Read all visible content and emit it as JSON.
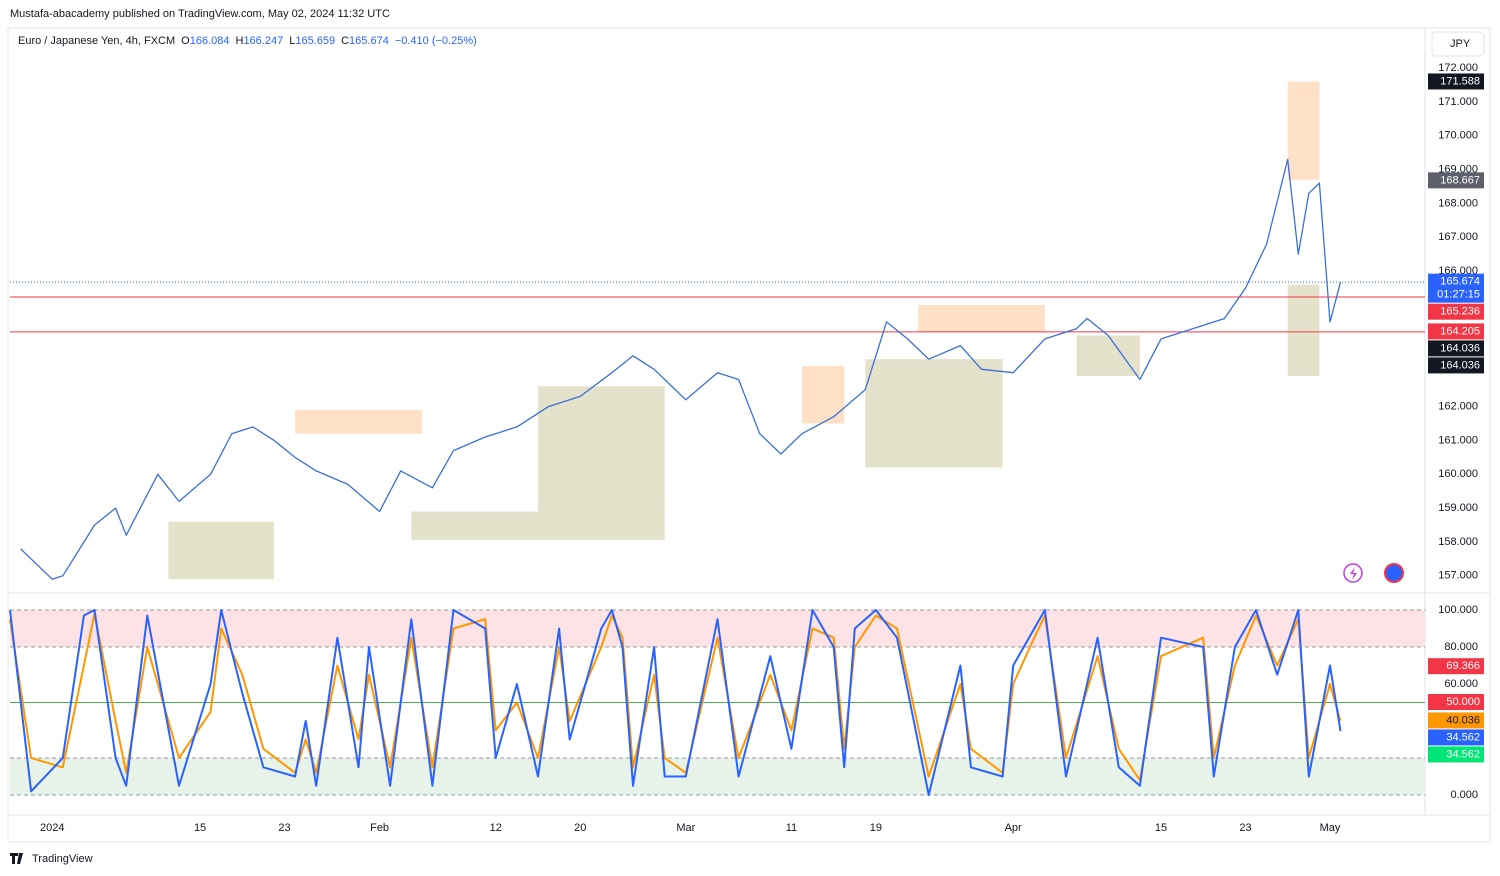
{
  "header": {
    "published": "Mustafa-abacademy published on TradingView.com, May 02, 2024 11:32 UTC",
    "currency": "JPY",
    "brand": "TradingView"
  },
  "chart_data": [
    {
      "type": "line",
      "symbol": "Euro / Japanese Yen, 4h, FXCM",
      "ohlc": [
        {
          "label": "O",
          "value": 166.084
        },
        {
          "label": "H",
          "value": 166.247
        },
        {
          "label": "L",
          "value": 165.659
        },
        {
          "label": "C",
          "value": 165.674
        }
      ],
      "change": "−0.410 (−0.25%)",
      "x": [
        "2023-12-29",
        "2024-01-01",
        "2024-01-02",
        "2024-01-05",
        "2024-01-07",
        "2024-01-08",
        "2024-01-11",
        "2024-01-13",
        "2024-01-16",
        "2024-01-18",
        "2024-01-20",
        "2024-01-22",
        "2024-01-24",
        "2024-01-26",
        "2024-01-29",
        "2024-02-01",
        "2024-02-03",
        "2024-02-06",
        "2024-02-08",
        "2024-02-11",
        "2024-02-14",
        "2024-02-17",
        "2024-02-20",
        "2024-02-23",
        "2024-02-25",
        "2024-02-27",
        "2024-03-01",
        "2024-03-04",
        "2024-03-06",
        "2024-03-08",
        "2024-03-10",
        "2024-03-12",
        "2024-03-15",
        "2024-03-18",
        "2024-03-20",
        "2024-03-22",
        "2024-03-24",
        "2024-03-27",
        "2024-03-29",
        "2024-04-01",
        "2024-04-04",
        "2024-04-07",
        "2024-04-08",
        "2024-04-10",
        "2024-04-13",
        "2024-04-15",
        "2024-04-18",
        "2024-04-21",
        "2024-04-23",
        "2024-04-25",
        "2024-04-27",
        "2024-04-28",
        "2024-04-29",
        "2024-04-30",
        "2024-05-01",
        "2024-05-02"
      ],
      "series": [
        {
          "color": "#3a6fd8",
          "values": [
            157.8,
            156.9,
            157.0,
            158.5,
            159.0,
            158.2,
            160.0,
            159.2,
            160.0,
            161.2,
            161.4,
            161.0,
            160.5,
            160.1,
            159.7,
            158.9,
            160.1,
            159.6,
            160.7,
            161.1,
            161.4,
            162.0,
            162.3,
            163.0,
            163.5,
            163.1,
            162.2,
            163.0,
            162.8,
            161.2,
            160.6,
            161.2,
            161.7,
            162.5,
            164.5,
            164.0,
            163.4,
            163.8,
            163.1,
            163.0,
            164.0,
            164.3,
            164.6,
            164.1,
            162.8,
            164.0,
            164.3,
            164.6,
            165.5,
            166.8,
            169.3,
            166.5,
            168.3,
            168.6,
            164.5,
            165.674
          ]
        }
      ],
      "zones": [
        {
          "start": "2024-01-12",
          "end": "2024-01-22",
          "low": 156.9,
          "high": 158.6,
          "color": "#e4e2cb"
        },
        {
          "start": "2024-02-04",
          "end": "2024-02-28",
          "low": 158.06,
          "high": 158.9,
          "color": "#e4e2cb"
        },
        {
          "start": "2024-02-16",
          "end": "2024-02-28",
          "low": 158.9,
          "high": 162.6,
          "color": "#e4e2cb"
        },
        {
          "start": "2024-03-18",
          "end": "2024-03-31",
          "low": 160.2,
          "high": 163.4,
          "color": "#e4e2cb"
        },
        {
          "start": "2024-04-07",
          "end": "2024-04-13",
          "low": 162.9,
          "high": 164.1,
          "color": "#e4e2cb"
        },
        {
          "start": "2024-04-27",
          "end": "2024-04-30",
          "low": 162.9,
          "high": 165.6,
          "color": "#e4e2cb"
        },
        {
          "start": "2024-01-24",
          "end": "2024-02-05",
          "low": 161.2,
          "high": 161.9,
          "color": "#fde0c6"
        },
        {
          "start": "2024-03-12",
          "end": "2024-03-16",
          "low": 161.5,
          "high": 163.2,
          "color": "#fde0c6"
        },
        {
          "start": "2024-03-23",
          "end": "2024-04-04",
          "low": 164.2,
          "high": 165.0,
          "color": "#fde0c6"
        },
        {
          "start": "2024-04-27",
          "end": "2024-04-30",
          "low": 168.7,
          "high": 171.6,
          "color": "#fde0c6"
        }
      ],
      "xlim": [
        "2023-12-28",
        "2024-05-10"
      ],
      "ylim": [
        156.7,
        172.68
      ],
      "yticks": [
        {
          "value": 157,
          "label": "157.000"
        },
        {
          "value": 158,
          "label": "158.000"
        },
        {
          "value": 159,
          "label": "159.000"
        },
        {
          "value": 160,
          "label": "160.000"
        },
        {
          "value": 161,
          "label": "161.000"
        },
        {
          "value": 162,
          "label": "162.000"
        },
        {
          "value": 166,
          "label": "166.000"
        },
        {
          "value": 167,
          "label": "167.000"
        },
        {
          "value": 168,
          "label": "168.000"
        },
        {
          "value": 169,
          "label": "169.000"
        },
        {
          "value": 170,
          "label": "170.000"
        },
        {
          "value": 171,
          "label": "171.000"
        },
        {
          "value": 172,
          "label": "172.000"
        }
      ],
      "tags": [
        {
          "value": 171.588,
          "color": "#131722"
        },
        {
          "value": 168.667,
          "color": "#5d606b"
        },
        {
          "value": 165.674,
          "color": "#2962ff",
          "countdown": "01:27:15",
          "line": "dotted"
        },
        {
          "value": 165.236,
          "color": "#f23645",
          "line": "solid"
        },
        {
          "value": 164.205,
          "color": "#f23645",
          "line": "solid"
        },
        {
          "value": 164.036,
          "color": "#131722"
        },
        {
          "value": 164.036,
          "color": "#131722"
        }
      ]
    },
    {
      "type": "line",
      "x": [
        "2023-12-28",
        "2023-12-30",
        "2024-01-02",
        "2024-01-04",
        "2024-01-05",
        "2024-01-07",
        "2024-01-08",
        "2024-01-10",
        "2024-01-13",
        "2024-01-16",
        "2024-01-17",
        "2024-01-19",
        "2024-01-21",
        "2024-01-24",
        "2024-01-25",
        "2024-01-26",
        "2024-01-28",
        "2024-01-30",
        "2024-01-31",
        "2024-02-02",
        "2024-02-04",
        "2024-02-06",
        "2024-02-08",
        "2024-02-11",
        "2024-02-12",
        "2024-02-14",
        "2024-02-16",
        "2024-02-18",
        "2024-02-19",
        "2024-02-22",
        "2024-02-23",
        "2024-02-24",
        "2024-02-25",
        "2024-02-27",
        "2024-02-28",
        "2024-03-01",
        "2024-03-04",
        "2024-03-06",
        "2024-03-09",
        "2024-03-11",
        "2024-03-13",
        "2024-03-15",
        "2024-03-16",
        "2024-03-17",
        "2024-03-19",
        "2024-03-21",
        "2024-03-24",
        "2024-03-27",
        "2024-03-28",
        "2024-03-31",
        "2024-04-01",
        "2024-04-03",
        "2024-04-04",
        "2024-04-06",
        "2024-04-09",
        "2024-04-11",
        "2024-04-13",
        "2024-04-15",
        "2024-04-19",
        "2024-04-20",
        "2024-04-22",
        "2024-04-24",
        "2024-04-26",
        "2024-04-28",
        "2024-04-29",
        "2024-05-01",
        "2024-05-02"
      ],
      "series": [
        {
          "color": "#ff9800",
          "values": [
            95,
            20,
            15,
            70,
            98,
            40,
            12,
            80,
            20,
            45,
            90,
            65,
            25,
            12,
            30,
            12,
            70,
            30,
            65,
            15,
            85,
            15,
            90,
            95,
            35,
            50,
            20,
            80,
            40,
            80,
            97,
            85,
            15,
            65,
            20,
            12,
            85,
            20,
            65,
            35,
            90,
            85,
            25,
            80,
            97,
            90,
            10,
            60,
            25,
            12,
            60,
            85,
            97,
            20,
            75,
            25,
            8,
            75,
            85,
            20,
            70,
            97,
            70,
            95,
            20,
            60,
            40.036
          ]
        },
        {
          "color": "#2962ff",
          "values": [
            100,
            2,
            20,
            97,
            100,
            20,
            5,
            97,
            5,
            60,
            100,
            55,
            15,
            10,
            40,
            5,
            85,
            15,
            80,
            5,
            95,
            5,
            100,
            90,
            20,
            60,
            10,
            90,
            30,
            90,
            100,
            80,
            5,
            80,
            10,
            10,
            95,
            10,
            75,
            25,
            100,
            80,
            15,
            90,
            100,
            85,
            0,
            70,
            15,
            10,
            70,
            90,
            100,
            10,
            85,
            15,
            5,
            85,
            80,
            10,
            80,
            100,
            65,
            100,
            10,
            70,
            34.562
          ]
        }
      ],
      "xlim": [
        "2023-12-28",
        "2024-05-10"
      ],
      "ylim": [
        -5.4,
        105.4
      ],
      "yticks": [
        {
          "value": 0,
          "label": "0.000"
        },
        {
          "value": 60,
          "label": "60.000"
        },
        {
          "value": 80,
          "label": "80.000"
        },
        {
          "value": 100,
          "label": "100.000"
        }
      ],
      "bands": [
        {
          "from": 80,
          "to": 100,
          "color": "#fde3e5"
        },
        {
          "from": 0,
          "to": 20,
          "color": "#e7f3e8"
        }
      ],
      "levels": [
        0,
        20,
        80,
        100
      ],
      "midline": {
        "value": 50,
        "color": "#4caf50"
      },
      "xticks": [
        {
          "value": "2024-01-01",
          "label": "2024"
        },
        {
          "value": "2024-01-15",
          "label": "15"
        },
        {
          "value": "2024-01-23",
          "label": "23"
        },
        {
          "value": "2024-02-01",
          "label": "Feb"
        },
        {
          "value": "2024-02-12",
          "label": "12"
        },
        {
          "value": "2024-02-20",
          "label": "20"
        },
        {
          "value": "2024-03-01",
          "label": "Mar"
        },
        {
          "value": "2024-03-11",
          "label": "11"
        },
        {
          "value": "2024-03-19",
          "label": "19"
        },
        {
          "value": "2024-04-01",
          "label": "Apr"
        },
        {
          "value": "2024-04-15",
          "label": "15"
        },
        {
          "value": "2024-04-23",
          "label": "23"
        },
        {
          "value": "2024-05-01",
          "label": "May"
        }
      ],
      "tags": [
        {
          "value": 69.366,
          "color": "#f23645"
        },
        {
          "value": 50,
          "label": "50.000",
          "color": "#f23645"
        },
        {
          "value": 40.036,
          "color": "#ff9800"
        },
        {
          "value": 34.562,
          "color": "#2962ff"
        },
        {
          "value": 34.562,
          "color": "#00e676"
        }
      ]
    }
  ]
}
